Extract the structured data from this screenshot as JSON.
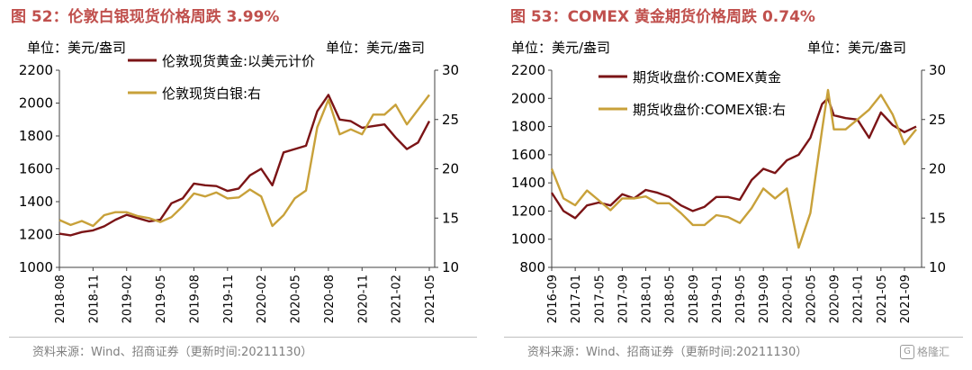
{
  "chart_data": [
    {
      "type": "line",
      "title": "图 52：伦敦白银现货价格周跌 3.99%",
      "left_unit": "单位：美元/盎司",
      "right_unit": "单位：美元/盎司",
      "source": "资料来源：Wind、招商证券（更新时间:20211130）",
      "ylim_left": [
        1000,
        2200
      ],
      "yticks_left": [
        1000,
        1200,
        1400,
        1600,
        1800,
        2000,
        2200
      ],
      "ylim_right": [
        10,
        30
      ],
      "yticks_right": [
        10,
        15,
        20,
        25,
        30
      ],
      "xticks": [
        "2018-08",
        "2018-11",
        "2019-02",
        "2019-05",
        "2019-08",
        "2019-11",
        "2020-02",
        "2020-05",
        "2020-08",
        "2020-11",
        "2021-02",
        "2021-05"
      ],
      "series": [
        {
          "name": "伦敦现货黄金:以美元计价",
          "axis": "left",
          "color": "#7b1416",
          "x": [
            "2018-08",
            "2018-09",
            "2018-10",
            "2018-11",
            "2018-12",
            "2019-01",
            "2019-02",
            "2019-03",
            "2019-04",
            "2019-05",
            "2019-06",
            "2019-07",
            "2019-08",
            "2019-09",
            "2019-10",
            "2019-11",
            "2019-12",
            "2020-01",
            "2020-02",
            "2020-03",
            "2020-04",
            "2020-05",
            "2020-06",
            "2020-07",
            "2020-08",
            "2020-09",
            "2020-10",
            "2020-11",
            "2020-12",
            "2021-01",
            "2021-02",
            "2021-03",
            "2021-04",
            "2021-05"
          ],
          "values": [
            1205,
            1195,
            1215,
            1225,
            1250,
            1290,
            1320,
            1300,
            1280,
            1290,
            1390,
            1420,
            1510,
            1500,
            1495,
            1465,
            1480,
            1560,
            1600,
            1500,
            1700,
            1720,
            1740,
            1950,
            2050,
            1900,
            1890,
            1850,
            1860,
            1870,
            1790,
            1720,
            1760,
            1890
          ]
        },
        {
          "name": "伦敦现货白银:右",
          "axis": "right",
          "color": "#c8a13a",
          "x": [
            "2018-08",
            "2018-09",
            "2018-10",
            "2018-11",
            "2018-12",
            "2019-01",
            "2019-02",
            "2019-03",
            "2019-04",
            "2019-05",
            "2019-06",
            "2019-07",
            "2019-08",
            "2019-09",
            "2019-10",
            "2019-11",
            "2019-12",
            "2020-01",
            "2020-02",
            "2020-03",
            "2020-04",
            "2020-05",
            "2020-06",
            "2020-07",
            "2020-08",
            "2020-09",
            "2020-10",
            "2020-11",
            "2020-12",
            "2021-01",
            "2021-02",
            "2021-03",
            "2021-04",
            "2021-05"
          ],
          "values": [
            14.8,
            14.3,
            14.7,
            14.2,
            15.3,
            15.6,
            15.6,
            15.2,
            15.0,
            14.6,
            15.1,
            16.2,
            17.5,
            17.2,
            17.6,
            17.0,
            17.1,
            17.9,
            17.2,
            14.2,
            15.3,
            17.0,
            17.8,
            24.2,
            27.0,
            23.5,
            24.0,
            23.5,
            25.5,
            25.5,
            26.5,
            24.5,
            26.0,
            27.5
          ]
        }
      ]
    },
    {
      "type": "line",
      "title": "图 53：COMEX 黄金期货价格周跌 0.74%",
      "left_unit": "单位：美元/盎司",
      "right_unit": "单位：美元/盎司",
      "source": "资料来源：Wind、招商证券（更新时间:20211130）",
      "ylim_left": [
        800,
        2200
      ],
      "yticks_left": [
        800,
        1000,
        1200,
        1400,
        1600,
        1800,
        2000,
        2200
      ],
      "ylim_right": [
        10,
        30
      ],
      "yticks_right": [
        10,
        15,
        20,
        25,
        30
      ],
      "xticks": [
        "2016-09",
        "2017-01",
        "2017-05",
        "2017-09",
        "2018-01",
        "2018-05",
        "2018-09",
        "2019-01",
        "2019-05",
        "2019-09",
        "2020-01",
        "2020-05",
        "2020-09",
        "2021-01",
        "2021-05",
        "2021-09"
      ],
      "series": [
        {
          "name": "期货收盘价:COMEX黄金",
          "axis": "left",
          "color": "#7b1416",
          "x": [
            "2016-09",
            "2016-11",
            "2017-01",
            "2017-03",
            "2017-05",
            "2017-07",
            "2017-09",
            "2017-11",
            "2018-01",
            "2018-03",
            "2018-05",
            "2018-07",
            "2018-09",
            "2018-11",
            "2019-01",
            "2019-03",
            "2019-05",
            "2019-07",
            "2019-09",
            "2019-11",
            "2020-01",
            "2020-03",
            "2020-05",
            "2020-07",
            "2020-08",
            "2020-09",
            "2020-11",
            "2021-01",
            "2021-03",
            "2021-05",
            "2021-07",
            "2021-09",
            "2021-11"
          ],
          "values": [
            1330,
            1200,
            1150,
            1240,
            1260,
            1240,
            1320,
            1290,
            1350,
            1330,
            1300,
            1240,
            1200,
            1230,
            1300,
            1300,
            1280,
            1420,
            1500,
            1470,
            1560,
            1600,
            1720,
            1960,
            2000,
            1880,
            1860,
            1850,
            1720,
            1900,
            1810,
            1760,
            1800
          ]
        },
        {
          "name": "期货收盘价:COMEX银:右",
          "axis": "right",
          "color": "#c8a13a",
          "x": [
            "2016-09",
            "2016-11",
            "2017-01",
            "2017-03",
            "2017-05",
            "2017-07",
            "2017-09",
            "2017-11",
            "2018-01",
            "2018-03",
            "2018-05",
            "2018-07",
            "2018-09",
            "2018-11",
            "2019-01",
            "2019-03",
            "2019-05",
            "2019-07",
            "2019-09",
            "2019-11",
            "2020-01",
            "2020-03",
            "2020-05",
            "2020-07",
            "2020-08",
            "2020-09",
            "2020-11",
            "2021-01",
            "2021-03",
            "2021-05",
            "2021-07",
            "2021-09",
            "2021-11"
          ],
          "values": [
            20.0,
            17.0,
            16.3,
            17.8,
            16.8,
            15.8,
            17.0,
            17.0,
            17.2,
            16.5,
            16.5,
            15.5,
            14.3,
            14.3,
            15.3,
            15.1,
            14.5,
            16.0,
            18.0,
            17.0,
            18.0,
            12.0,
            15.5,
            24.0,
            28.0,
            24.0,
            24.0,
            25.0,
            26.0,
            27.5,
            25.5,
            22.5,
            24.0
          ]
        }
      ]
    }
  ],
  "watermark": {
    "icon": "G",
    "text": "格隆汇"
  }
}
